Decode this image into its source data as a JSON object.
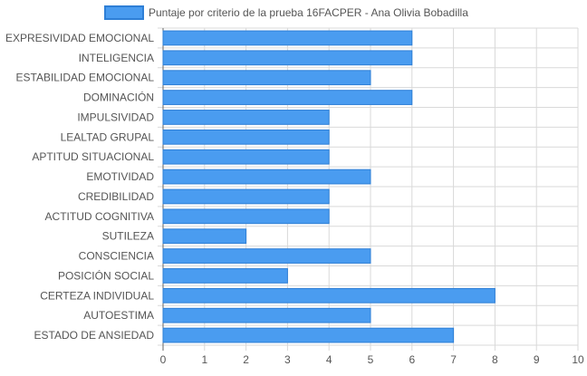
{
  "chart_data": {
    "type": "bar",
    "orientation": "horizontal",
    "legend": {
      "label": "Puntaje por criterio de la prueba 16FACPER - Ana Olivia Bobadilla",
      "placement": "top-center"
    },
    "categories": [
      "EXPRESIVIDAD EMOCIONAL",
      "INTELIGENCIA",
      "ESTABILIDAD EMOCIONAL",
      "DOMINACIÓN",
      "IMPULSIVIDAD",
      "LEALTAD GRUPAL",
      "APTITUD SITUACIONAL",
      "EMOTIVIDAD",
      "CREDIBILIDAD",
      "ACTITUD COGNITIVA",
      "SUTILEZA",
      "CONSCIENCIA",
      "POSICIÓN SOCIAL",
      "CERTEZA INDIVIDUAL",
      "AUTOESTIMA",
      "ESTADO DE ANSIEDAD"
    ],
    "series": [
      {
        "name": "Puntaje por criterio de la prueba 16FACPER - Ana Olivia Bobadilla",
        "values": [
          6,
          6,
          5,
          6,
          4,
          4,
          4,
          5,
          4,
          4,
          2,
          5,
          3,
          8,
          5,
          7
        ]
      }
    ],
    "xlim": [
      0,
      10
    ],
    "xticks": [
      "0",
      "1",
      "2",
      "3",
      "4",
      "5",
      "6",
      "7",
      "8",
      "9",
      "10"
    ],
    "grid": true,
    "colors": {
      "bar_fill": "#4a9cf0",
      "bar_stroke": "#2e7fd6",
      "grid": "#d9d9d9",
      "axis": "#666666",
      "text": "#555555"
    }
  }
}
